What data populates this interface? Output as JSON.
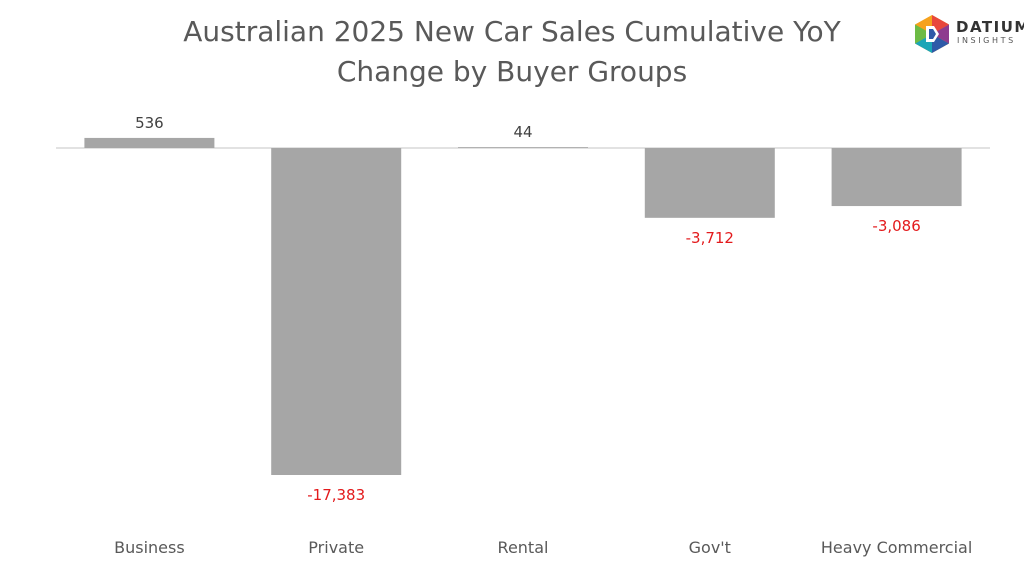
{
  "title": {
    "line1": "Australian 2025 New Car Sales Cumulative YoY",
    "line2": "Change by Buyer Groups"
  },
  "logo": {
    "word": "DATIUM",
    "sub": "INSIGHTS",
    "alt": "datium-insights-logo"
  },
  "colors": {
    "bar": "#a6a6a6",
    "positive_label": "#404040",
    "negative_label": "#e31a1c",
    "axis": "#d9d9d9",
    "category_text": "#595959"
  },
  "chart_data": {
    "type": "bar",
    "categories": [
      "Business",
      "Private",
      "Rental",
      "Gov't",
      "Heavy Commercial"
    ],
    "values": [
      536,
      -17383,
      44,
      -3712,
      -3086
    ],
    "value_labels": [
      "536",
      "-17,383",
      "44",
      "-3,712",
      "-3,086"
    ],
    "title": "Australian 2025 New Car Sales Cumulative YoY Change by Buyer Groups",
    "xlabel": "",
    "ylabel": "",
    "grid": false,
    "legend": "none"
  }
}
